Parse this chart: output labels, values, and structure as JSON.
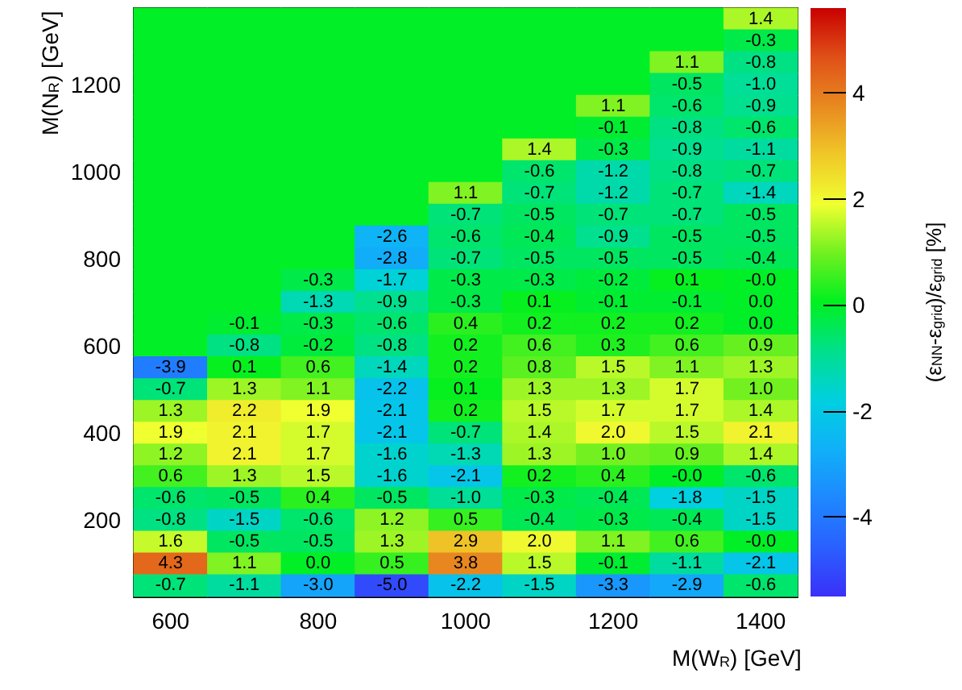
{
  "chart_data": {
    "type": "heatmap",
    "xlabel": "M(W$_{R}$) [GeV]",
    "ylabel": "M(N$_{R}$) [GeV]",
    "clabel": "(ε$_{NN}$-ε$_{grid}$)/ε$_{grid}$ [%]",
    "categories": [
      "600",
      null,
      "800",
      null,
      "1000",
      null,
      "1200",
      null,
      "1400"
    ],
    "y_categories": [
      null,
      null,
      null,
      "1200",
      null,
      null,
      null,
      "1000",
      null,
      null,
      null,
      "800",
      null,
      null,
      null,
      "600",
      null,
      null,
      null,
      "400",
      null,
      null,
      null,
      "200",
      null,
      null,
      null
    ],
    "clim": [
      -5.5,
      5.6
    ],
    "cticks": [
      -4,
      -2,
      0,
      2,
      4
    ],
    "cells": [
      [
        0,
        0,
        0,
        0,
        0,
        0,
        0,
        0,
        1.4
      ],
      [
        0,
        0,
        0,
        0,
        0,
        0,
        0,
        0,
        -0.3
      ],
      [
        0,
        0,
        0,
        0,
        0,
        0,
        0,
        1.1,
        -0.8
      ],
      [
        0,
        0,
        0,
        0,
        0,
        0,
        0,
        -0.5,
        -1.0
      ],
      [
        0,
        0,
        0,
        0,
        0,
        0,
        1.1,
        -0.6,
        -0.9
      ],
      [
        0,
        0,
        0,
        0,
        0,
        0,
        -0.1,
        -0.8,
        -0.6
      ],
      [
        0,
        0,
        0,
        0,
        0,
        1.4,
        -0.3,
        -0.9,
        -1.1
      ],
      [
        0,
        0,
        0,
        0,
        0,
        -0.6,
        -1.2,
        -0.8,
        -0.7
      ],
      [
        0,
        0,
        0,
        0,
        1.1,
        -0.7,
        -1.2,
        -0.7,
        -1.4
      ],
      [
        0,
        0,
        0,
        0,
        -0.7,
        -0.5,
        -0.7,
        -0.7,
        -0.5
      ],
      [
        0,
        0,
        0,
        -2.6,
        -0.6,
        -0.4,
        -0.9,
        -0.5,
        -0.5
      ],
      [
        0,
        0,
        0,
        -2.8,
        -0.7,
        -0.5,
        -0.5,
        -0.5,
        -0.4
      ],
      [
        0,
        0,
        -0.3,
        -1.7,
        -0.3,
        -0.3,
        -0.2,
        0.1,
        0.0
      ],
      [
        0,
        0,
        -1.3,
        -0.9,
        -0.3,
        0.1,
        -0.1,
        -0.1,
        0.0
      ],
      [
        0,
        -0.1,
        -0.3,
        -0.6,
        0.4,
        0.2,
        0.2,
        0.2,
        0.0
      ],
      [
        0,
        -0.8,
        -0.2,
        -0.8,
        0.2,
        0.6,
        0.3,
        0.6,
        0.9
      ],
      [
        -3.9,
        0.1,
        0.6,
        -1.4,
        0.2,
        0.8,
        1.5,
        1.1,
        1.3
      ],
      [
        -0.7,
        1.3,
        1.1,
        -2.2,
        0.1,
        1.3,
        1.3,
        1.7,
        1.0
      ],
      [
        1.3,
        2.2,
        1.9,
        -2.1,
        0.2,
        1.5,
        1.7,
        1.7,
        1.4
      ],
      [
        1.9,
        2.1,
        1.7,
        -2.1,
        -0.7,
        1.4,
        2.0,
        1.5,
        2.1
      ],
      [
        1.2,
        2.1,
        1.7,
        -1.6,
        -1.3,
        1.3,
        1.0,
        0.9,
        1.4
      ],
      [
        0.6,
        1.3,
        1.5,
        -1.6,
        -2.1,
        0.2,
        0.4,
        0.0,
        -0.6
      ],
      [
        -0.6,
        -0.5,
        0.4,
        -0.5,
        -1.0,
        -0.3,
        -0.4,
        -1.8,
        -1.5
      ],
      [
        -0.8,
        -1.5,
        -0.6,
        1.2,
        0.5,
        -0.4,
        -0.3,
        -0.4,
        -1.5
      ],
      [
        1.6,
        -0.5,
        -0.5,
        1.3,
        2.9,
        2.0,
        1.1,
        0.6,
        0.0
      ],
      [
        4.3,
        1.1,
        0.0,
        0.5,
        3.8,
        1.5,
        -0.1,
        -1.1,
        -2.1
      ],
      [
        -0.7,
        -1.1,
        -3.0,
        -5.0,
        -2.2,
        -1.5,
        -3.3,
        -2.9,
        -0.6
      ]
    ],
    "cell_labels": [
      [
        null,
        null,
        null,
        null,
        null,
        null,
        null,
        null,
        "1.4"
      ],
      [
        null,
        null,
        null,
        null,
        null,
        null,
        null,
        null,
        "-0.3"
      ],
      [
        null,
        null,
        null,
        null,
        null,
        null,
        null,
        "1.1",
        "-0.8"
      ],
      [
        null,
        null,
        null,
        null,
        null,
        null,
        null,
        "-0.5",
        "-1.0"
      ],
      [
        null,
        null,
        null,
        null,
        null,
        null,
        "1.1",
        "-0.6",
        "-0.9"
      ],
      [
        null,
        null,
        null,
        null,
        null,
        null,
        "-0.1",
        "-0.8",
        "-0.6"
      ],
      [
        null,
        null,
        null,
        null,
        null,
        "1.4",
        "-0.3",
        "-0.9",
        "-1.1"
      ],
      [
        null,
        null,
        null,
        null,
        null,
        "-0.6",
        "-1.2",
        "-0.8",
        "-0.7"
      ],
      [
        null,
        null,
        null,
        null,
        "1.1",
        "-0.7",
        "-1.2",
        "-0.7",
        "-1.4"
      ],
      [
        null,
        null,
        null,
        null,
        "-0.7",
        "-0.5",
        "-0.7",
        "-0.7",
        "-0.5"
      ],
      [
        null,
        null,
        null,
        "-2.6",
        "-0.6",
        "-0.4",
        "-0.9",
        "-0.5",
        "-0.5"
      ],
      [
        null,
        null,
        null,
        "-2.8",
        "-0.7",
        "-0.5",
        "-0.5",
        "-0.5",
        "-0.4"
      ],
      [
        null,
        null,
        "-0.3",
        "-1.7",
        "-0.3",
        "-0.3",
        "-0.2",
        "0.1",
        "-0.0"
      ],
      [
        null,
        null,
        "-1.3",
        "-0.9",
        "-0.3",
        "0.1",
        "-0.1",
        "-0.1",
        "0.0"
      ],
      [
        null,
        "-0.1",
        "-0.3",
        "-0.6",
        "0.4",
        "0.2",
        "0.2",
        "0.2",
        "0.0"
      ],
      [
        null,
        "-0.8",
        "-0.2",
        "-0.8",
        "0.2",
        "0.6",
        "0.3",
        "0.6",
        "0.9"
      ],
      [
        "-3.9",
        "0.1",
        "0.6",
        "-1.4",
        "0.2",
        "0.8",
        "1.5",
        "1.1",
        "1.3"
      ],
      [
        "-0.7",
        "1.3",
        "1.1",
        "-2.2",
        "0.1",
        "1.3",
        "1.3",
        "1.7",
        "1.0"
      ],
      [
        "1.3",
        "2.2",
        "1.9",
        "-2.1",
        "0.2",
        "1.5",
        "1.7",
        "1.7",
        "1.4"
      ],
      [
        "1.9",
        "2.1",
        "1.7",
        "-2.1",
        "-0.7",
        "1.4",
        "2.0",
        "1.5",
        "2.1"
      ],
      [
        "1.2",
        "2.1",
        "1.7",
        "-1.6",
        "-1.3",
        "1.3",
        "1.0",
        "0.9",
        "1.4"
      ],
      [
        "0.6",
        "1.3",
        "1.5",
        "-1.6",
        "-2.1",
        "0.2",
        "0.4",
        "-0.0",
        "-0.6"
      ],
      [
        "-0.6",
        "-0.5",
        "0.4",
        "-0.5",
        "-1.0",
        "-0.3",
        "-0.4",
        "-1.8",
        "-1.5"
      ],
      [
        "-0.8",
        "-1.5",
        "-0.6",
        "1.2",
        "0.5",
        "-0.4",
        "-0.3",
        "-0.4",
        "-1.5"
      ],
      [
        "1.6",
        "-0.5",
        "-0.5",
        "1.3",
        "2.9",
        "2.0",
        "1.1",
        "0.6",
        "-0.0"
      ],
      [
        "4.3",
        "1.1",
        "0.0",
        "0.5",
        "3.8",
        "1.5",
        "-0.1",
        "-1.1",
        "-2.1"
      ],
      [
        "-0.7",
        "-1.1",
        "-3.0",
        "-5.0",
        "-2.2",
        "-1.5",
        "-3.3",
        "-2.9",
        "-0.6"
      ]
    ]
  }
}
